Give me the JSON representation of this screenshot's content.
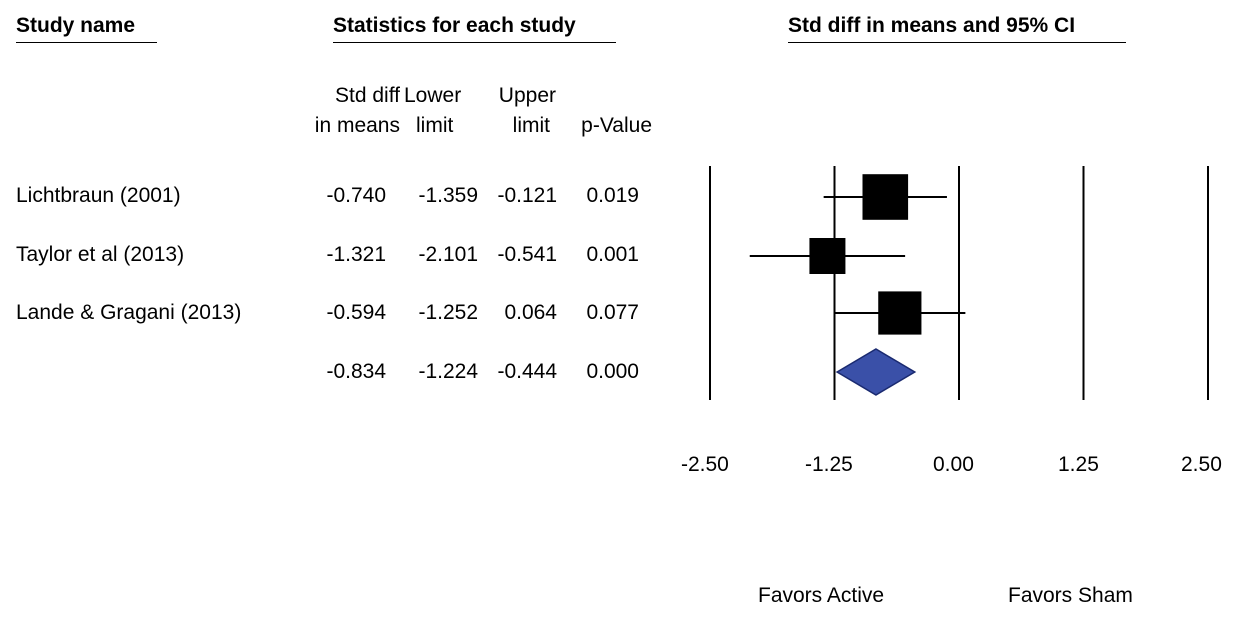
{
  "headers": {
    "study_name": "Study name",
    "statistics": "Statistics for each study",
    "plot": "Std diff in means and 95% CI"
  },
  "columns": {
    "std_diff": [
      "Std diff",
      "in means"
    ],
    "lower": [
      "Lower",
      "limit"
    ],
    "upper": [
      "Upper",
      "limit"
    ],
    "pvalue": [
      "",
      "p-Value"
    ]
  },
  "rows": [
    {
      "study": "Lichtbraun (2001)",
      "std_diff": "-0.740",
      "lower": "-1.359",
      "upper": "-0.121",
      "pvalue": "0.019"
    },
    {
      "study": "Taylor et al (2013)",
      "std_diff": "-1.321",
      "lower": "-2.101",
      "upper": "-0.541",
      "pvalue": "0.001"
    },
    {
      "study": "Lande & Gragani (2013)",
      "std_diff": "-0.594",
      "lower": "-1.252",
      "upper": "0.064",
      "pvalue": "0.077"
    },
    {
      "study": "",
      "std_diff": "-0.834",
      "lower": "-1.224",
      "upper": "-0.444",
      "pvalue": "0.000"
    }
  ],
  "axis": {
    "ticks": [
      "-2.50",
      "-1.25",
      "0.00",
      "1.25",
      "2.50"
    ],
    "favors_left": "Favors Active",
    "favors_right": "Favors Sham"
  },
  "colors": {
    "box": "#000000",
    "diamond": "#3a50a8",
    "diamond_stroke": "#1a2a70"
  },
  "chart_data": {
    "type": "forest",
    "title": "Std diff in means and 95% CI",
    "xlim": [
      -2.5,
      2.5
    ],
    "xticks": [
      -2.5,
      -1.25,
      0,
      1.25,
      2.5
    ],
    "studies": [
      {
        "name": "Lichtbraun (2001)",
        "estimate": -0.74,
        "lower": -1.359,
        "upper": -0.121,
        "p": 0.019
      },
      {
        "name": "Taylor et al (2013)",
        "estimate": -1.321,
        "lower": -2.101,
        "upper": -0.541,
        "p": 0.001
      },
      {
        "name": "Lande & Gragani (2013)",
        "estimate": -0.594,
        "lower": -1.252,
        "upper": 0.064,
        "p": 0.077
      }
    ],
    "summary": {
      "estimate": -0.834,
      "lower": -1.224,
      "upper": -0.444,
      "p": 0.0
    },
    "relative_weights": [
      0.95,
      0.75,
      0.9
    ],
    "grid": true
  }
}
